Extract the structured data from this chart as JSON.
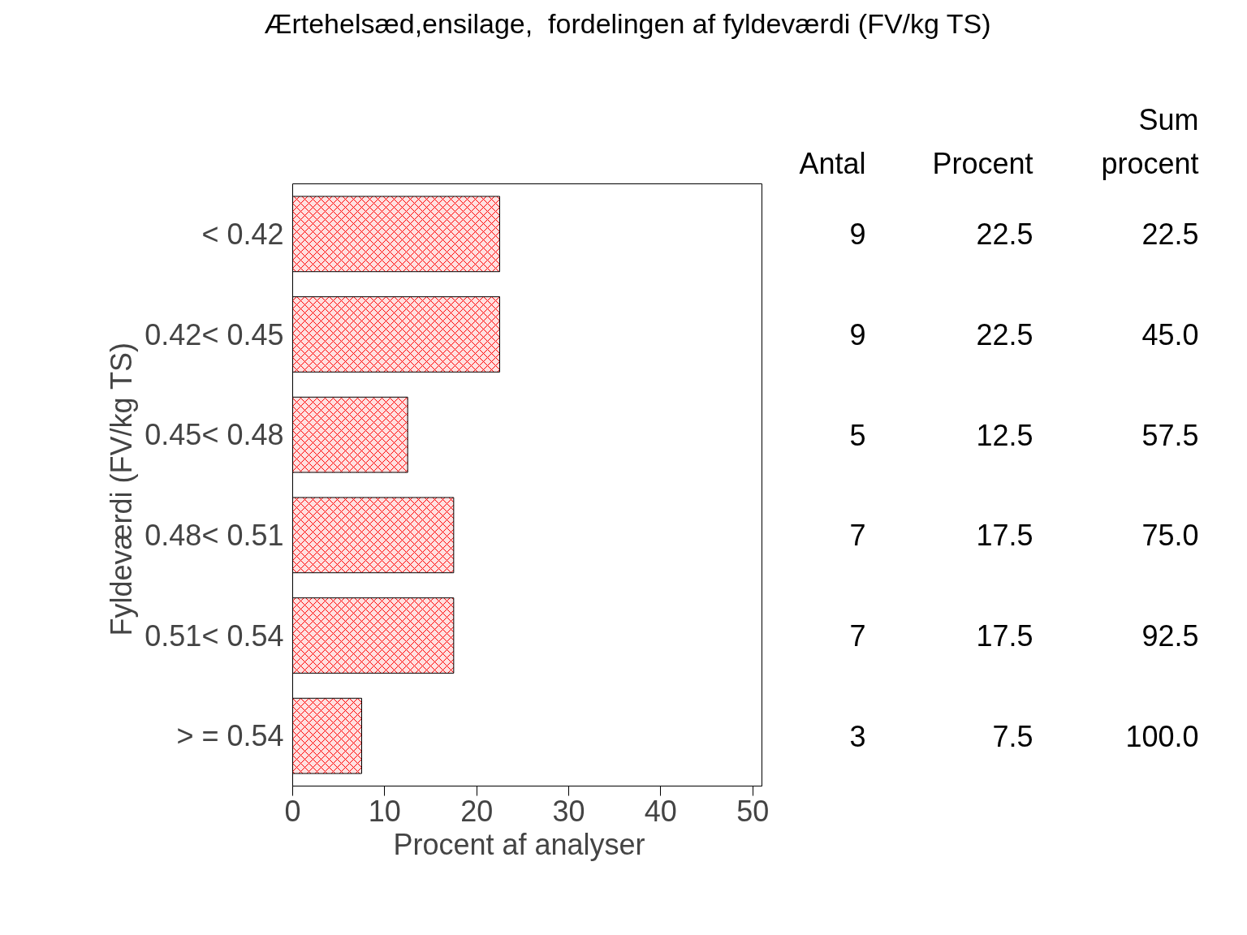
{
  "chart_data": {
    "type": "bar",
    "orientation": "horizontal",
    "title": "Ærtehelsæd,ensilage,  fordelingen af fyldeværdi (FV/kg TS)",
    "xlabel": "Procent  af  analyser",
    "ylabel": "Fyldeværdi  (FV/kg TS)",
    "categories": [
      "< 0.42",
      "0.42< 0.45",
      "0.45< 0.48",
      "0.48< 0.51",
      "0.51< 0.54",
      "> = 0.54"
    ],
    "values": [
      22.5,
      22.5,
      12.5,
      17.5,
      17.5,
      7.5
    ],
    "color": "#ff0000",
    "xlim": [
      0,
      51
    ],
    "xticks": [
      0,
      10,
      20,
      30,
      40,
      50
    ],
    "grid": false,
    "data_labels": true,
    "annotations": [
      "Antal",
      "Procent",
      "Sum procent",
      "9",
      "9",
      "5",
      "7",
      "7",
      "3",
      "22.5",
      "45.0",
      "57.5",
      "75.0",
      "92.5",
      "100.0"
    ]
  }
}
